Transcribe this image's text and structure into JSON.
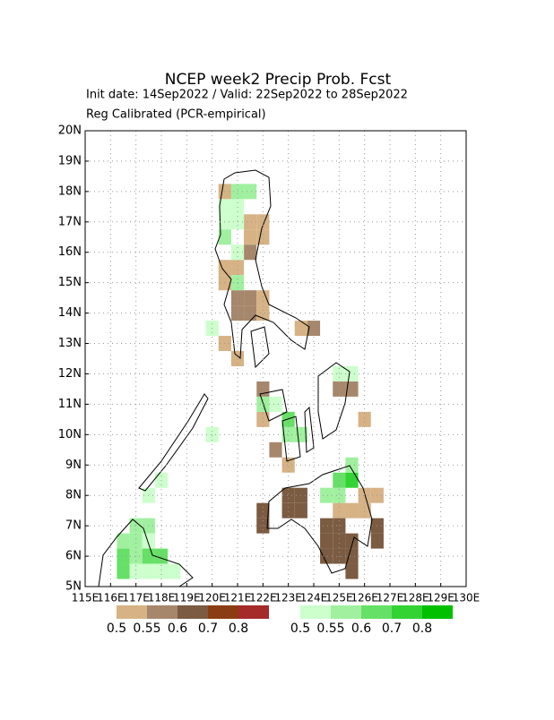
{
  "chart_data": {
    "type": "grid-map",
    "title": "NCEP week2 Precip Prob. Fcst",
    "subtitle": [
      "Init date: 14Sep2022 / Valid: 22Sep2022 to 28Sep2022",
      "Reg Calibrated (PCR-empirical)"
    ],
    "xlim": [
      115,
      130
    ],
    "ylim": [
      5,
      20
    ],
    "xticks": [
      {
        "value": 115,
        "label": "115E"
      },
      {
        "value": 116,
        "label": "116E"
      },
      {
        "value": 117,
        "label": "117E"
      },
      {
        "value": 118,
        "label": "118E"
      },
      {
        "value": 119,
        "label": "119E"
      },
      {
        "value": 120,
        "label": "120E"
      },
      {
        "value": 121,
        "label": "121E"
      },
      {
        "value": 122,
        "label": "122E"
      },
      {
        "value": 123,
        "label": "123E"
      },
      {
        "value": 124,
        "label": "124E"
      },
      {
        "value": 125,
        "label": "125E"
      },
      {
        "value": 126,
        "label": "126E"
      },
      {
        "value": 127,
        "label": "127E"
      },
      {
        "value": 128,
        "label": "128E"
      },
      {
        "value": 129,
        "label": "129E"
      },
      {
        "value": 130,
        "label": "130E"
      }
    ],
    "yticks": [
      {
        "value": 5,
        "label": "5N"
      },
      {
        "value": 6,
        "label": "6N"
      },
      {
        "value": 7,
        "label": "7N"
      },
      {
        "value": 8,
        "label": "8N"
      },
      {
        "value": 9,
        "label": "9N"
      },
      {
        "value": 10,
        "label": "10N"
      },
      {
        "value": 11,
        "label": "11N"
      },
      {
        "value": 12,
        "label": "12N"
      },
      {
        "value": 13,
        "label": "13N"
      },
      {
        "value": 14,
        "label": "14N"
      },
      {
        "value": 15,
        "label": "15N"
      },
      {
        "value": 16,
        "label": "16N"
      },
      {
        "value": 17,
        "label": "17N"
      },
      {
        "value": 18,
        "label": "18N"
      },
      {
        "value": 19,
        "label": "19N"
      },
      {
        "value": 20,
        "label": "20N"
      }
    ],
    "grid": true,
    "below": {
      "levels": [
        0.5,
        0.55,
        0.6,
        0.7,
        0.8
      ],
      "colors": [
        "#d6b285",
        "#a6876c",
        "#7b5b41",
        "#8a3d12",
        "#a52a2a"
      ],
      "cells": [
        [
          120.25,
          17.75,
          0.5
        ],
        [
          121.25,
          16.75,
          0.5
        ],
        [
          121.75,
          16.75,
          0.5
        ],
        [
          121.25,
          16.25,
          0.5
        ],
        [
          121.75,
          16.25,
          0.5
        ],
        [
          121.25,
          15.75,
          0.55
        ],
        [
          120.25,
          15.25,
          0.5
        ],
        [
          120.75,
          15.25,
          0.5
        ],
        [
          120.25,
          14.75,
          0.5
        ],
        [
          120.75,
          14.25,
          0.55
        ],
        [
          121.25,
          14.25,
          0.55
        ],
        [
          120.75,
          13.75,
          0.55
        ],
        [
          121.25,
          13.75,
          0.55
        ],
        [
          121.75,
          14.25,
          0.5
        ],
        [
          121.75,
          13.75,
          0.5
        ],
        [
          120.25,
          12.75,
          0.5
        ],
        [
          120.75,
          12.25,
          0.5
        ],
        [
          123.25,
          13.25,
          0.5
        ],
        [
          123.75,
          13.25,
          0.55
        ],
        [
          121.75,
          11.25,
          0.55
        ],
        [
          121.75,
          10.25,
          0.5
        ],
        [
          122.25,
          9.25,
          0.55
        ],
        [
          122.75,
          8.75,
          0.5
        ],
        [
          124.75,
          11.25,
          0.55
        ],
        [
          125.25,
          11.25,
          0.55
        ],
        [
          125.75,
          10.25,
          0.5
        ],
        [
          122.75,
          7.75,
          0.6
        ],
        [
          123.25,
          7.75,
          0.6
        ],
        [
          122.75,
          7.25,
          0.6
        ],
        [
          123.25,
          7.25,
          0.6
        ],
        [
          121.75,
          7.25,
          0.6
        ],
        [
          121.75,
          6.75,
          0.6
        ],
        [
          124.75,
          7.25,
          0.5
        ],
        [
          125.25,
          7.25,
          0.5
        ],
        [
          125.75,
          7.25,
          0.5
        ],
        [
          125.75,
          7.75,
          0.5
        ],
        [
          126.25,
          7.75,
          0.5
        ],
        [
          124.25,
          6.75,
          0.6
        ],
        [
          124.75,
          6.75,
          0.6
        ],
        [
          124.25,
          6.25,
          0.6
        ],
        [
          124.75,
          6.25,
          0.6
        ],
        [
          125.25,
          6.25,
          0.6
        ],
        [
          124.25,
          5.75,
          0.6
        ],
        [
          124.75,
          5.75,
          0.6
        ],
        [
          125.25,
          5.75,
          0.6
        ],
        [
          125.25,
          5.25,
          0.6
        ],
        [
          126.25,
          6.75,
          0.6
        ],
        [
          126.25,
          6.25,
          0.6
        ]
      ]
    },
    "above": {
      "levels": [
        0.5,
        0.55,
        0.6,
        0.7,
        0.8
      ],
      "colors": [
        "#ccffcc",
        "#a0f0a0",
        "#66e066",
        "#33d333",
        "#00c000"
      ],
      "cells": [
        [
          120.75,
          17.75,
          0.55
        ],
        [
          121.25,
          17.75,
          0.55
        ],
        [
          120.25,
          17.25,
          0.5
        ],
        [
          120.75,
          17.25,
          0.5
        ],
        [
          120.25,
          16.75,
          0.5
        ],
        [
          120.75,
          16.75,
          0.5
        ],
        [
          120.25,
          16.25,
          0.55
        ],
        [
          120.75,
          15.75,
          0.5
        ],
        [
          120.75,
          14.75,
          0.55
        ],
        [
          119.75,
          13.25,
          0.5
        ],
        [
          122.25,
          10.75,
          0.5
        ],
        [
          121.75,
          10.75,
          0.55
        ],
        [
          122.75,
          10.25,
          0.6
        ],
        [
          122.75,
          9.75,
          0.55
        ],
        [
          123.25,
          9.75,
          0.55
        ],
        [
          124.75,
          11.75,
          0.5
        ],
        [
          125.25,
          11.75,
          0.5
        ],
        [
          124.25,
          7.75,
          0.55
        ],
        [
          124.75,
          7.75,
          0.55
        ],
        [
          124.75,
          8.25,
          0.6
        ],
        [
          125.25,
          8.25,
          0.7
        ],
        [
          125.25,
          8.75,
          0.55
        ],
        [
          119.75,
          9.75,
          0.5
        ],
        [
          117.75,
          8.25,
          0.5
        ],
        [
          117.25,
          7.75,
          0.5
        ],
        [
          116.25,
          5.25,
          0.6
        ],
        [
          116.25,
          5.75,
          0.6
        ],
        [
          116.25,
          6.25,
          0.55
        ],
        [
          116.75,
          5.25,
          0.5
        ],
        [
          116.75,
          5.75,
          0.55
        ],
        [
          116.75,
          6.25,
          0.55
        ],
        [
          116.75,
          6.75,
          0.55
        ],
        [
          117.25,
          6.75,
          0.55
        ],
        [
          117.25,
          6.25,
          0.5
        ],
        [
          117.25,
          5.75,
          0.6
        ],
        [
          117.75,
          5.75,
          0.6
        ],
        [
          117.25,
          5.25,
          0.5
        ],
        [
          117.75,
          5.25,
          0.5
        ],
        [
          118.25,
          5.25,
          0.5
        ]
      ]
    }
  }
}
